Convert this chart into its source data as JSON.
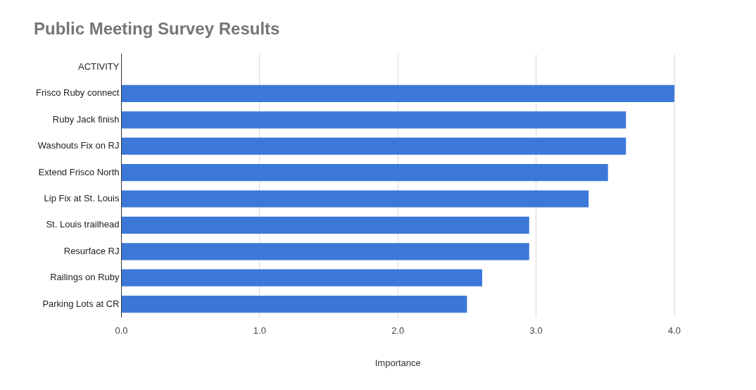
{
  "chart_data": {
    "type": "bar",
    "orientation": "horizontal",
    "title": "Public Meeting Survey Results",
    "xlabel": "Importance",
    "categories": [
      "ACTIVITY",
      "Frisco Ruby connect",
      "Ruby Jack finish",
      "Washouts Fix on RJ",
      "Extend Frisco North",
      "Lip Fix at St. Louis",
      "St. Louis trailhead",
      "Resurface RJ",
      "Railings on Ruby",
      "Parking Lots at CR"
    ],
    "values": [
      null,
      4.0,
      3.65,
      3.65,
      3.52,
      3.38,
      2.95,
      2.95,
      2.61,
      2.5
    ],
    "color": "#3c78d8",
    "xlim": [
      0,
      4
    ],
    "xticks": [
      {
        "value": 0,
        "label": "0.0"
      },
      {
        "value": 1,
        "label": "1.0"
      },
      {
        "value": 2,
        "label": "2.0"
      },
      {
        "value": 3,
        "label": "3.0"
      },
      {
        "value": 4,
        "label": "4.0"
      }
    ],
    "grid": "x"
  }
}
